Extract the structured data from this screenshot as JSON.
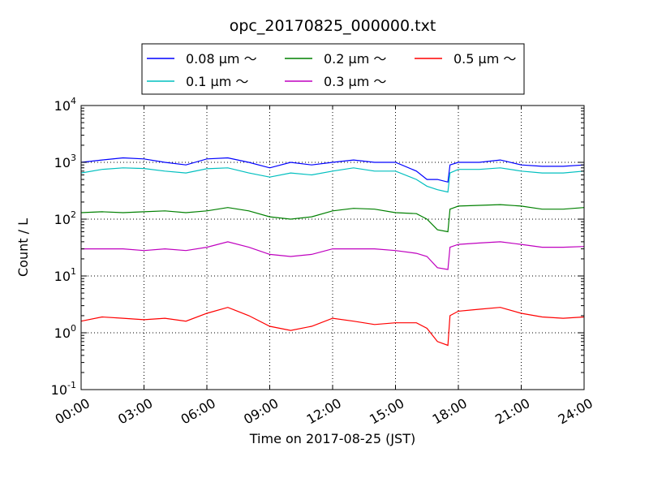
{
  "chart_data": {
    "type": "line",
    "title": "opc_20170825_000000.txt",
    "xlabel": "Time on 2017-08-25 (JST)",
    "ylabel": "Count / L",
    "x_unit": "hours",
    "xlim": [
      0,
      24
    ],
    "ylim": [
      0.1,
      10000
    ],
    "yscale": "log",
    "grid": true,
    "legend_position": "top-center",
    "x_tick_labels": [
      "00:00",
      "03:00",
      "06:00",
      "09:00",
      "12:00",
      "15:00",
      "18:00",
      "21:00",
      "24:00"
    ],
    "x_ticks": [
      0,
      3,
      6,
      9,
      12,
      15,
      18,
      21,
      24
    ],
    "y_tick_labels": [
      {
        "base": "10",
        "exp": "-1"
      },
      {
        "base": "10",
        "exp": "0"
      },
      {
        "base": "10",
        "exp": "1"
      },
      {
        "base": "10",
        "exp": "2"
      },
      {
        "base": "10",
        "exp": "3"
      },
      {
        "base": "10",
        "exp": "4"
      }
    ],
    "y_ticks": [
      0.1,
      1,
      10,
      100,
      1000,
      10000
    ],
    "x": [
      0,
      1,
      2,
      3,
      4,
      5,
      6,
      7,
      8,
      9,
      10,
      11,
      12,
      13,
      14,
      15,
      16,
      16.5,
      17,
      17.5,
      17.6,
      18,
      19,
      20,
      21,
      22,
      23,
      24
    ],
    "series": [
      {
        "name": "0.08 μm ～",
        "color": "#0000ff",
        "values": [
          1000,
          1100,
          1200,
          1150,
          1000,
          900,
          1150,
          1200,
          1000,
          800,
          1000,
          900,
          1000,
          1100,
          1000,
          1000,
          700,
          500,
          500,
          450,
          900,
          1000,
          1000,
          1100,
          900,
          850,
          850,
          900
        ]
      },
      {
        "name": "0.1 μm ～",
        "color": "#00bfbf",
        "values": [
          650,
          750,
          800,
          780,
          700,
          650,
          770,
          800,
          650,
          550,
          650,
          600,
          700,
          800,
          700,
          700,
          500,
          380,
          330,
          300,
          650,
          750,
          750,
          800,
          700,
          650,
          650,
          700
        ]
      },
      {
        "name": "0.2 μm ～",
        "color": "#008000",
        "values": [
          130,
          135,
          130,
          135,
          140,
          130,
          140,
          160,
          140,
          110,
          100,
          110,
          140,
          155,
          150,
          130,
          125,
          100,
          65,
          60,
          150,
          170,
          175,
          180,
          170,
          150,
          150,
          160
        ]
      },
      {
        "name": "0.3 μm ～",
        "color": "#bf00bf",
        "values": [
          30,
          30,
          30,
          28,
          30,
          28,
          32,
          40,
          32,
          24,
          22,
          24,
          30,
          30,
          30,
          28,
          25,
          22,
          14,
          13,
          32,
          36,
          38,
          40,
          36,
          32,
          32,
          33
        ]
      },
      {
        "name": "0.5 μm ～",
        "color": "#ff0000",
        "values": [
          1.6,
          1.9,
          1.8,
          1.7,
          1.8,
          1.6,
          2.2,
          2.8,
          2.0,
          1.3,
          1.1,
          1.3,
          1.8,
          1.6,
          1.4,
          1.5,
          1.5,
          1.2,
          0.7,
          0.6,
          2.0,
          2.4,
          2.6,
          2.8,
          2.2,
          1.9,
          1.8,
          1.9
        ]
      }
    ]
  }
}
